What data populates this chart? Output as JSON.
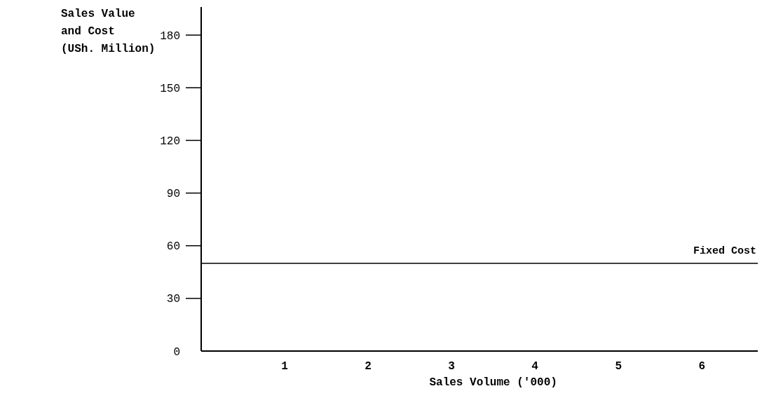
{
  "chart_data": {
    "type": "line",
    "xlabel": "Sales Volume ('000)",
    "ylabel": "Sales Value\nand Cost\n(USh. Million)",
    "x": [
      0,
      6.67
    ],
    "series": [
      {
        "name": "Fixed Cost",
        "color": "#000000",
        "values": [
          50,
          50
        ]
      }
    ],
    "xlim": [
      0,
      6.67
    ],
    "xticks": [
      1,
      2,
      3,
      4,
      5,
      6
    ],
    "ylim": [
      0,
      196
    ],
    "yticks": [
      0,
      30,
      60,
      90,
      120,
      150,
      180
    ],
    "grid": false,
    "marker": "none",
    "line_style": "solid"
  }
}
